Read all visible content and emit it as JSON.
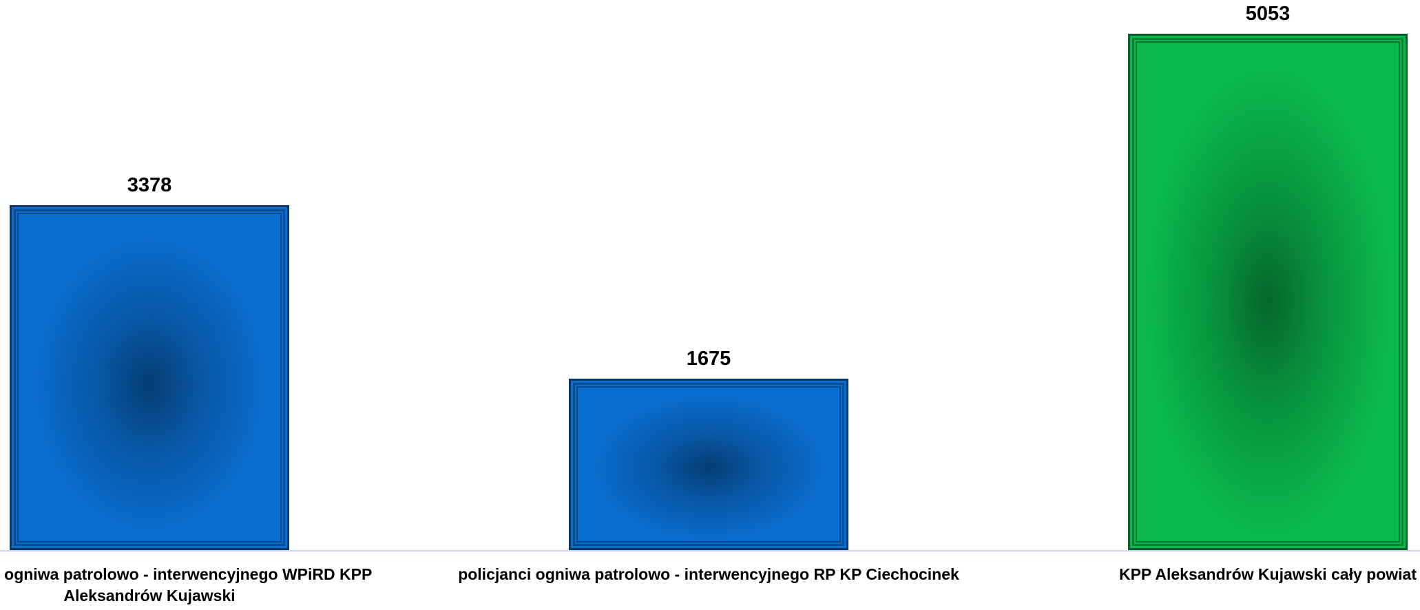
{
  "chart_data": {
    "type": "bar",
    "title": "",
    "xlabel": "",
    "ylabel": "",
    "ylim": [
      0,
      5053
    ],
    "grid": false,
    "legend": "none",
    "categories": [
      "policjanci ogniwa patrolowo - interwencyjnego WPiRD KPP Aleksandrów Kujawski",
      "policjanci ogniwa patrolowo - interwencyjnego RP KP Ciechocinek",
      "KPP Aleksandrów Kujawski cały powiat"
    ],
    "values": [
      3378,
      1675,
      5053
    ],
    "value_labels": [
      "3378",
      "1675",
      "5053"
    ],
    "bar_colors": [
      "#0a6ed1",
      "#0a6ed1",
      "#0ab84e"
    ]
  }
}
